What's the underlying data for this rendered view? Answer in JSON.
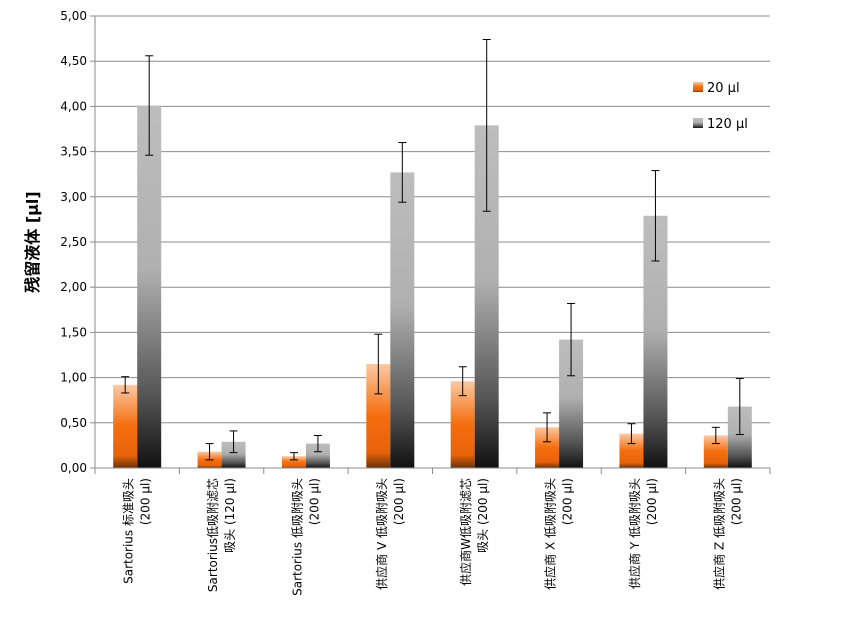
{
  "chart_data": {
    "type": "bar",
    "title": "",
    "xlabel": "",
    "ylabel": "残留液体 [µl]",
    "ylim": [
      0,
      5
    ],
    "yticks": [
      "0,00",
      "0,50",
      "1,00",
      "1,50",
      "2,00",
      "2,50",
      "3,00",
      "3,50",
      "4,00",
      "4,50",
      "5,00"
    ],
    "grid": true,
    "legend_position": "top-right",
    "categories": [
      [
        "Sartorius 标准吸头",
        "(200 µl)"
      ],
      [
        "Sartorius低吸附滤芯",
        "吸头 (120 µl)"
      ],
      [
        "Sartorius 低吸附吸头",
        "(200 µl)"
      ],
      [
        "供应商 V 低吸附吸头",
        "(200 µl)"
      ],
      [
        "供应商W低吸附滤芯",
        "吸头 (200 µl)"
      ],
      [
        "供应商 X 低吸附吸头",
        "(200 µl)"
      ],
      [
        "供应商 Y 低吸附吸头",
        "(200 µl)"
      ],
      [
        "供应商 Z 低吸附吸头",
        "(200 µl)"
      ]
    ],
    "series": [
      {
        "name": "20 µl",
        "color": "#f26c0c",
        "values": [
          0.92,
          0.18,
          0.13,
          1.15,
          0.96,
          0.45,
          0.38,
          0.36
        ],
        "errors": [
          0.09,
          0.09,
          0.04,
          0.33,
          0.16,
          0.16,
          0.11,
          0.09
        ]
      },
      {
        "name": "120 µl",
        "color": "#a0a0a0",
        "values": [
          4.01,
          0.29,
          0.27,
          3.27,
          3.79,
          1.42,
          2.79,
          0.68
        ],
        "errors": [
          0.55,
          0.12,
          0.09,
          0.33,
          0.95,
          0.4,
          0.5,
          0.31
        ]
      }
    ]
  }
}
